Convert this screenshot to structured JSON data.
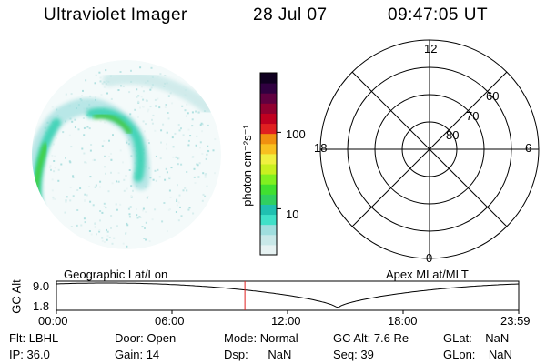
{
  "header": {
    "instrument": "Ultraviolet Imager",
    "date": "28 Jul 07",
    "time": "09:47:05 UT"
  },
  "colorbar": {
    "unit_label": "photon cm⁻²s⁻¹",
    "ticks": [
      {
        "value": 10,
        "label": "10"
      },
      {
        "value": 100,
        "label": "100"
      }
    ],
    "scale": "log",
    "colors": [
      "#e6f2f2",
      "#c8e8e8",
      "#9fdede",
      "#40e0c8",
      "#20c0b0",
      "#30d060",
      "#40e030",
      "#80f020",
      "#c8f020",
      "#f0f040",
      "#f8c020",
      "#f09010",
      "#e02020",
      "#c00020",
      "#900030",
      "#600040",
      "#300040",
      "#100020"
    ]
  },
  "polar_grid": {
    "mlt_labels": {
      "top": "12",
      "right": "6",
      "bottom": "0",
      "left": "18"
    },
    "lat_labels": [
      "60",
      "70",
      "80"
    ]
  },
  "timeline": {
    "left_label": "Geographic Lat/Lon",
    "right_label": "Apex  MLat/MLT",
    "y_axis_label": "GC Alt",
    "y_ticks": [
      "9.0",
      "1.8"
    ],
    "x_ticks": [
      "00:00",
      "06:00",
      "12:00",
      "18:00",
      "23:59"
    ],
    "current_time_hours": 9.785,
    "marker_color": "#e02020"
  },
  "info": {
    "row1": [
      {
        "key": "Flt:",
        "val": "LBHL"
      },
      {
        "key": "Door:",
        "val": "Open"
      },
      {
        "key": "Mode:",
        "val": "Normal"
      },
      {
        "key": "GC Alt:",
        "val": "7.6 Re"
      },
      {
        "key": "GLat:",
        "val": "NaN"
      }
    ],
    "row2": [
      {
        "key": "IP:",
        "val": "36.0"
      },
      {
        "key": "Gain:",
        "val": "14"
      },
      {
        "key": "Dsp:",
        "val": "NaN"
      },
      {
        "key": "Seq:",
        "val": "39"
      },
      {
        "key": "GLon:",
        "val": "NaN"
      }
    ]
  }
}
